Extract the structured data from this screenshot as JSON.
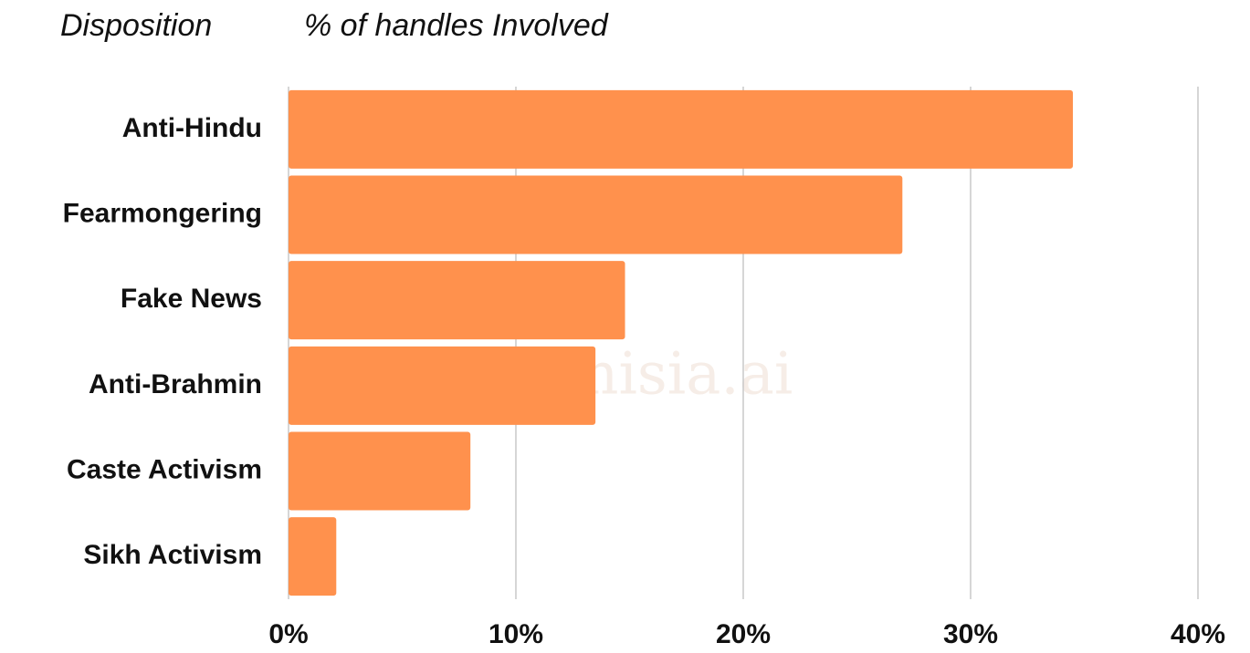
{
  "chart_data": {
    "type": "hbar",
    "y_label": "Disposition",
    "x_label": "% of handles  Involved",
    "watermark": "hindumisia.ai",
    "categories": [
      "Anti-Hindu",
      "Fearmongering",
      "Fake News",
      "Anti-Brahmin",
      "Caste Activism",
      "Sikh Activism"
    ],
    "values": [
      34.5,
      27.0,
      14.8,
      13.5,
      8.0,
      2.1
    ],
    "color": "#ff914d",
    "xlim": [
      0,
      40
    ],
    "xticks": [
      {
        "value": 0,
        "label": "0%"
      },
      {
        "value": 10,
        "label": "10%"
      },
      {
        "value": 20,
        "label": "20%"
      },
      {
        "value": 30,
        "label": "30%"
      },
      {
        "value": 40,
        "label": "40%"
      }
    ],
    "grid": true
  }
}
